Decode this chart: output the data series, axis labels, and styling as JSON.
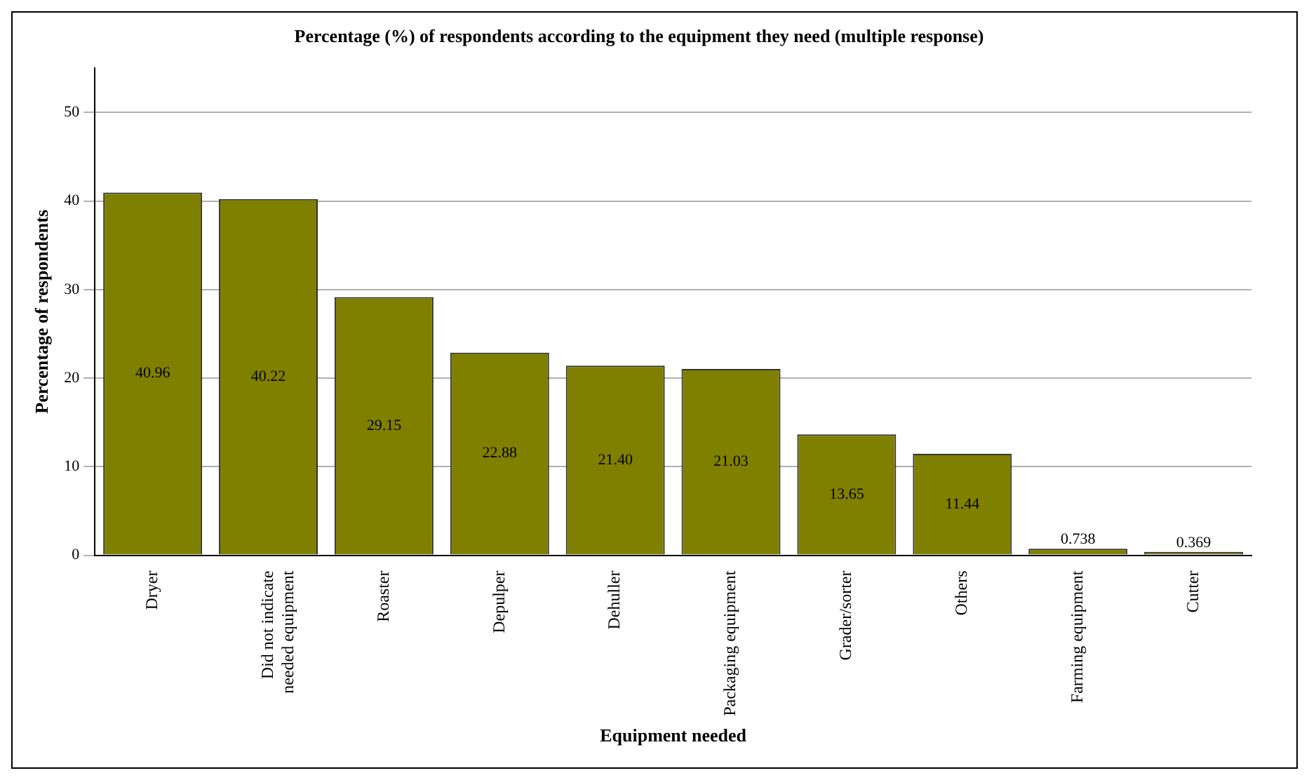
{
  "chart_data": {
    "type": "bar",
    "title": "Percentage (%) of respondents according to the equipment they need (multiple response)",
    "xlabel": "Equipment needed",
    "ylabel": "Percentage of respondents",
    "categories": [
      "Dryer",
      "Did not indicate needed equipment",
      "Roaster",
      "Depulper",
      "Dehuller",
      "Packaging equipment",
      "Grader/sorter",
      "Others",
      "Farming equipment",
      "Cutter"
    ],
    "values": [
      40.96,
      40.22,
      29.15,
      22.88,
      21.4,
      21.03,
      13.65,
      11.44,
      0.738,
      0.369
    ],
    "value_labels": [
      "40.96",
      "40.22",
      "29.15",
      "22.88",
      "21.40",
      "21.03",
      "13.65",
      "11.44",
      "0.738",
      "0.369"
    ],
    "color": "#808000",
    "ylim": [
      0,
      55
    ],
    "yticks": [
      0,
      10,
      20,
      30,
      40,
      50
    ],
    "grid": "y",
    "legend": false
  }
}
